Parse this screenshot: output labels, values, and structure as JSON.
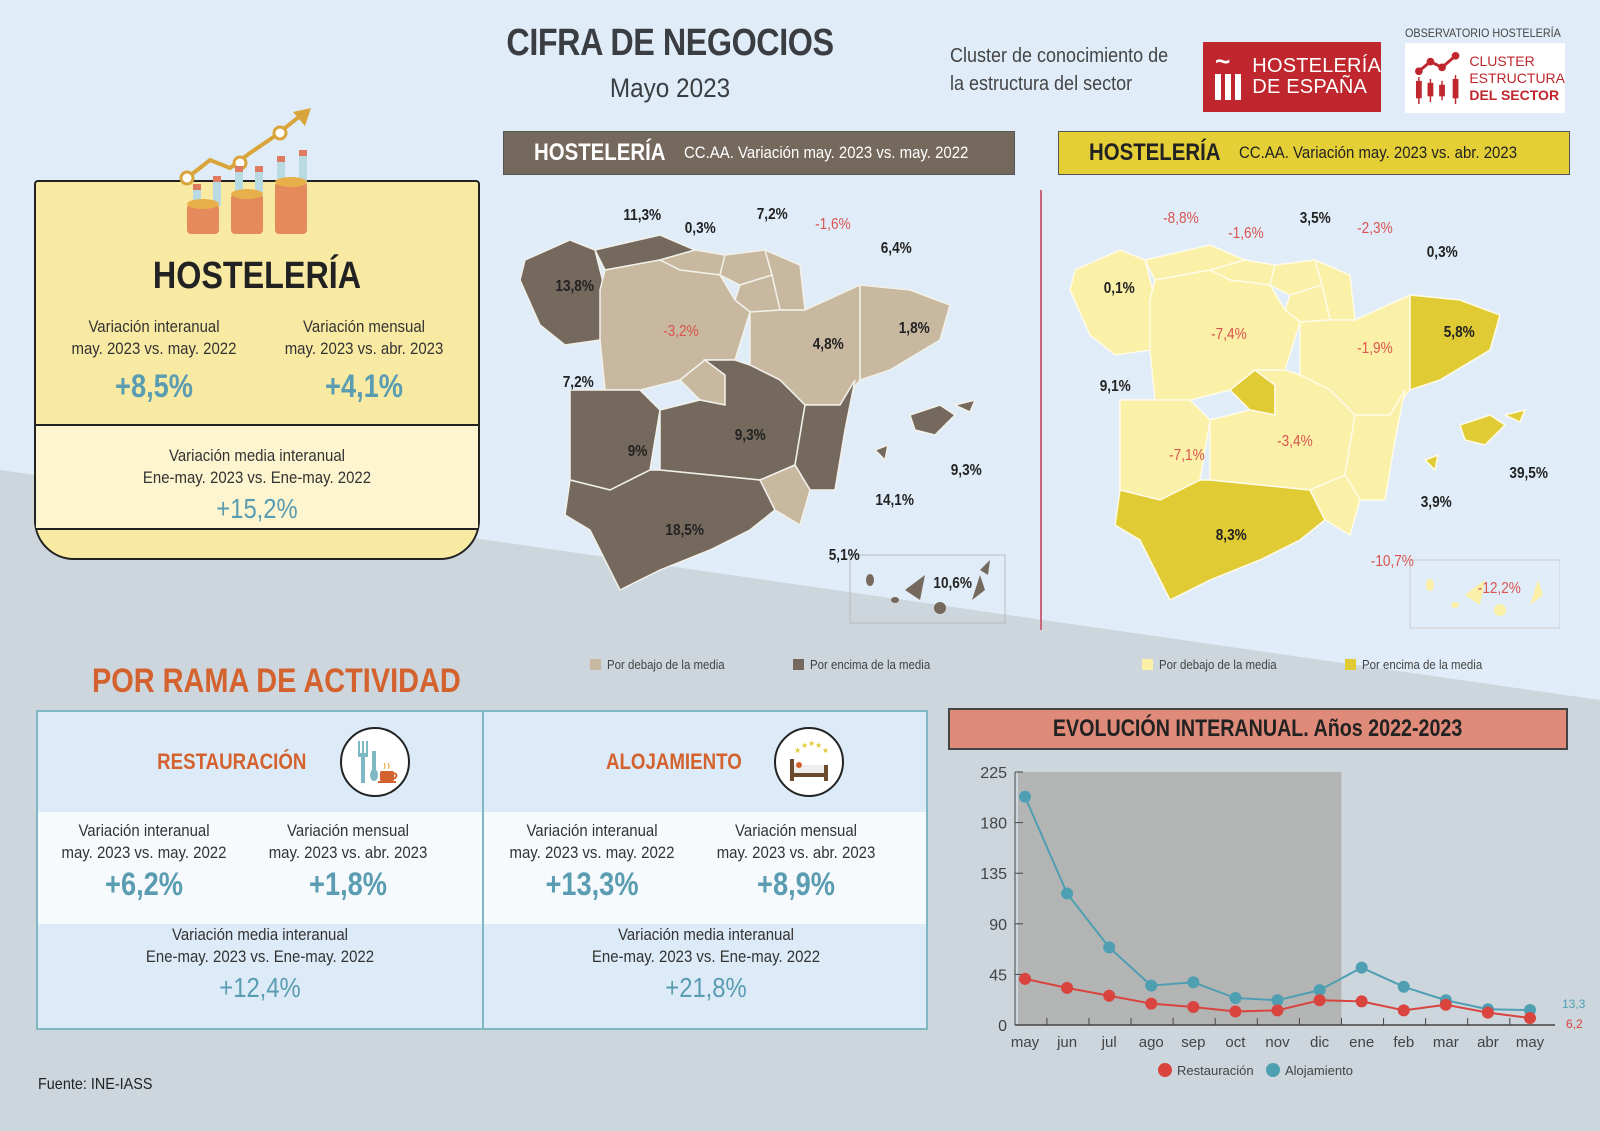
{
  "header": {
    "title": "CIFRA DE NEGOCIOS",
    "subtitle": "Mayo 2023",
    "cluster_line1": "Cluster de conocimiento de",
    "cluster_line2": "la estructura del sector",
    "logo_hostelera_line1": "HOSTELERÍA",
    "logo_hostelera_line2": "DE ESPAÑA",
    "observatorio_label": "OBSERVATORIO HOSTELERÍA",
    "logo_cluster_line1": "CLUSTER",
    "logo_cluster_line2": "ESTRUCTURA",
    "logo_cluster_line3": "DEL SECTOR"
  },
  "hosteleria": {
    "title": "HOSTELERÍA",
    "interanual": {
      "label1": "Variación interanual",
      "label2": "may. 2023 vs. may. 2022",
      "value": "+8,5%"
    },
    "mensual": {
      "label1": "Variación mensual",
      "label2": "may. 2023 vs. abr. 2023",
      "value": "+4,1%"
    },
    "media": {
      "label1": "Variación media interanual",
      "label2": "Ene-may. 2023 vs. Ene-may. 2022",
      "value": "+15,2%"
    }
  },
  "maps": [
    {
      "header_bold": "HOSTELERÍA",
      "header_sub": "CC.AA. Variación may. 2023 vs. may. 2022",
      "colors": {
        "below": "#c8b89f",
        "above": "#75695d"
      },
      "legend_below": "Por debajo de la media",
      "legend_above": "Por encima de la media",
      "regions": {
        "galicia": "13,8%",
        "asturias": "11,3%",
        "cantabria": "0,3%",
        "pais_vasco": "7,2%",
        "navarra": "-1,6%",
        "la_rioja": "6,4%",
        "castilla_leon": "-3,2%",
        "aragon": "4,8%",
        "cataluna": "1,8%",
        "madrid": "7,2%",
        "extremadura": "9%",
        "castilla_la_mancha": "9,3%",
        "valencia": "14,1%",
        "baleares": "9,3%",
        "andalucia": "18,5%",
        "murcia": "5,1%",
        "canarias": "10,6%"
      }
    },
    {
      "header_bold": "HOSTELERÍA",
      "header_sub": "CC.AA. Variación may. 2023 vs. abr. 2023",
      "colors": {
        "below": "#faf0a8",
        "above": "#e0cb35"
      },
      "legend_below": "Por debajo de la media",
      "legend_above": "Por encima de la media",
      "regions": {
        "galicia": "0,1%",
        "asturias": "-8,8%",
        "cantabria": "-1,6%",
        "pais_vasco": "3,5%",
        "navarra": "-2,3%",
        "la_rioja": "0,3%",
        "castilla_leon": "-7,4%",
        "aragon": "-1,9%",
        "cataluna": "5,8%",
        "madrid": "9,1%",
        "extremadura": "-7,1%",
        "castilla_la_mancha": "-3,4%",
        "valencia": "3,9%",
        "baleares": "39,5%",
        "andalucia": "8,3%",
        "murcia": "-10,7%",
        "canarias": "-12,2%"
      }
    }
  ],
  "rama": {
    "title": "POR RAMA DE ACTIVIDAD",
    "restauracion": {
      "label": "RESTAURACIÓN",
      "interanual": {
        "label1": "Variación interanual",
        "label2": "may. 2023 vs. may. 2022",
        "value": "+6,2%"
      },
      "mensual": {
        "label1": "Variación mensual",
        "label2": "may. 2023 vs. abr. 2023",
        "value": "+1,8%"
      },
      "media": {
        "label1": "Variación media interanual",
        "label2": "Ene-may. 2023 vs. Ene-may. 2022",
        "value": "+12,4%"
      }
    },
    "alojamiento": {
      "label": "ALOJAMIENTO",
      "interanual": {
        "label1": "Variación interanual",
        "label2": "may. 2023 vs. may. 2022",
        "value": "+13,3%"
      },
      "mensual": {
        "label1": "Variación mensual",
        "label2": "may. 2023 vs. abr. 2023",
        "value": "+8,9%"
      },
      "media": {
        "label1": "Variación media interanual",
        "label2": "Ene-may. 2023 vs. Ene-may. 2022",
        "value": "+21,8%"
      }
    }
  },
  "chart_data": {
    "type": "line",
    "title": "EVOLUCIÓN INTERANUAL. Años 2022-2023",
    "xlabel": "",
    "ylabel": "",
    "categories": [
      "may",
      "jun",
      "jul",
      "ago",
      "sep",
      "oct",
      "nov",
      "dic",
      "ene",
      "feb",
      "mar",
      "abr",
      "may"
    ],
    "yticks": [
      0,
      45,
      90,
      135,
      180,
      225
    ],
    "ylim": [
      0,
      225
    ],
    "shaded_range": [
      "may",
      "dic"
    ],
    "series": [
      {
        "name": "Restauración",
        "color": "#d9443f",
        "values": [
          41,
          33,
          26,
          19,
          16,
          12,
          13,
          22,
          21,
          13,
          18,
          11,
          6.2
        ]
      },
      {
        "name": "Alojamiento",
        "color": "#4f9fb3",
        "values": [
          203,
          117,
          69,
          35,
          38,
          24,
          22,
          31,
          51,
          34,
          22,
          14,
          13.3
        ]
      }
    ],
    "end_labels": {
      "alojamiento": "13,3",
      "restauracion": "6,2"
    },
    "legend_position": "bottom",
    "grid": false
  },
  "footer": {
    "source": "Fuente: INE-IASS"
  }
}
